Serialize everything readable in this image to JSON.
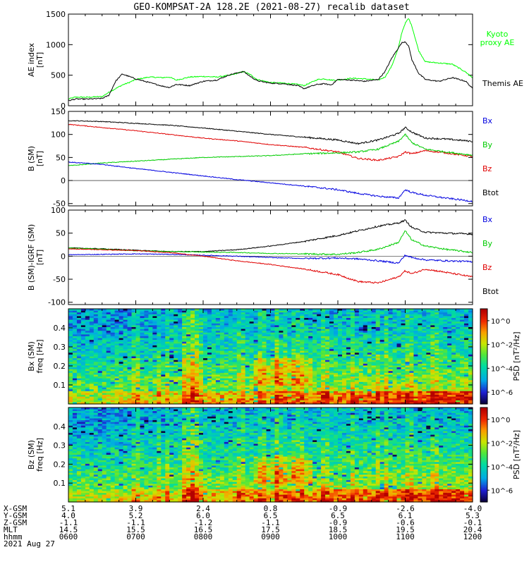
{
  "title": "GEO-KOMPSAT-2A 128.2E (2021-08-27) recalib dataset",
  "colors": {
    "black": "#000000",
    "blue": "#0000e0",
    "green": "#00cc00",
    "red": "#e00000",
    "ae_green": "#00ff00"
  },
  "chart_data": [
    {
      "type": "line",
      "panel": "AE index",
      "ylabel_main": "AE index",
      "ylabel_unit": "[nT]",
      "yticks": [
        "0",
        "500",
        "1000",
        "1500"
      ],
      "ylim": [
        0,
        1500
      ],
      "legend": [
        {
          "name": "Kyoto proxy AE",
          "lines": [
            "Kyoto",
            "proxy AE"
          ],
          "color": "#00ff00"
        },
        {
          "name": "Themis AE",
          "lines": [
            "Themis AE"
          ],
          "color": "#000000"
        }
      ],
      "series": [
        {
          "name": "Kyoto proxy AE",
          "color": "#00ff00",
          "x": [
            6.0,
            6.1,
            6.3,
            6.5,
            6.6,
            6.8,
            6.9,
            7.0,
            7.2,
            7.4,
            7.5,
            7.6,
            7.8,
            8.0,
            8.2,
            8.4,
            8.6,
            8.7,
            8.8,
            9.0,
            9.2,
            9.4,
            9.5,
            9.6,
            9.7,
            9.8,
            9.9,
            10.0,
            10.2,
            10.4,
            10.6,
            10.7,
            10.8,
            10.9,
            10.95,
            11.0,
            11.05,
            11.1,
            11.2,
            11.3,
            11.5,
            11.7,
            11.9,
            12.0
          ],
          "y": [
            110,
            140,
            140,
            150,
            220,
            340,
            380,
            430,
            470,
            460,
            470,
            420,
            470,
            480,
            470,
            500,
            560,
            510,
            430,
            380,
            370,
            350,
            330,
            380,
            430,
            440,
            420,
            420,
            450,
            440,
            420,
            470,
            650,
            950,
            1200,
            1350,
            1430,
            1300,
            900,
            720,
            700,
            680,
            550,
            460
          ]
        },
        {
          "name": "Themis AE",
          "color": "#000000",
          "x": [
            6.0,
            6.1,
            6.3,
            6.5,
            6.6,
            6.7,
            6.8,
            6.9,
            7.0,
            7.2,
            7.4,
            7.5,
            7.6,
            7.8,
            8.0,
            8.2,
            8.4,
            8.6,
            8.7,
            8.8,
            9.0,
            9.2,
            9.4,
            9.5,
            9.6,
            9.7,
            9.8,
            9.9,
            10.0,
            10.2,
            10.4,
            10.6,
            10.7,
            10.8,
            10.9,
            10.95,
            11.0,
            11.05,
            11.1,
            11.2,
            11.3,
            11.5,
            11.7,
            11.9,
            12.0
          ],
          "y": [
            80,
            110,
            110,
            120,
            170,
            400,
            520,
            480,
            440,
            380,
            320,
            300,
            350,
            330,
            400,
            420,
            510,
            560,
            480,
            410,
            370,
            360,
            330,
            280,
            320,
            350,
            360,
            340,
            430,
            420,
            400,
            430,
            560,
            780,
            950,
            1030,
            1050,
            980,
            750,
            530,
            430,
            400,
            460,
            400,
            280
          ]
        }
      ]
    },
    {
      "type": "line",
      "panel": "B (SM)",
      "ylabel_main": "B (SM)",
      "ylabel_unit": "[nT]",
      "yticks": [
        "-50",
        "0",
        "50",
        "100",
        "150"
      ],
      "ylim": [
        -55,
        150
      ],
      "legend": [
        {
          "name": "Bx",
          "lines": [
            "Bx"
          ],
          "color": "#0000e0"
        },
        {
          "name": "By",
          "lines": [
            "By"
          ],
          "color": "#00cc00"
        },
        {
          "name": "Bz",
          "lines": [
            "Bz"
          ],
          "color": "#e00000"
        },
        {
          "name": "Btot",
          "lines": [
            "Btot"
          ],
          "color": "#000000"
        }
      ],
      "series": [
        {
          "name": "Btot",
          "color": "#000000",
          "x": [
            6.0,
            6.5,
            7.0,
            7.5,
            8.0,
            8.5,
            9.0,
            9.5,
            10.0,
            10.3,
            10.6,
            10.9,
            11.0,
            11.1,
            11.3,
            11.6,
            12.0
          ],
          "y": [
            130,
            128,
            124,
            120,
            114,
            107,
            100,
            94,
            88,
            80,
            88,
            102,
            115,
            105,
            92,
            90,
            85
          ]
        },
        {
          "name": "Bz",
          "color": "#e00000",
          "x": [
            6.0,
            6.5,
            7.0,
            7.5,
            8.0,
            8.5,
            9.0,
            9.5,
            10.0,
            10.3,
            10.6,
            10.9,
            11.0,
            11.1,
            11.3,
            11.6,
            12.0
          ],
          "y": [
            122,
            115,
            108,
            100,
            92,
            86,
            78,
            72,
            62,
            48,
            44,
            52,
            62,
            58,
            65,
            60,
            52
          ]
        },
        {
          "name": "By",
          "color": "#00cc00",
          "x": [
            6.0,
            6.5,
            7.0,
            7.5,
            8.0,
            8.5,
            9.0,
            9.5,
            10.0,
            10.3,
            10.6,
            10.9,
            11.0,
            11.1,
            11.3,
            11.6,
            12.0
          ],
          "y": [
            32,
            38,
            42,
            46,
            50,
            52,
            54,
            58,
            60,
            62,
            68,
            85,
            100,
            82,
            68,
            62,
            55
          ]
        },
        {
          "name": "Bx",
          "color": "#0000e0",
          "x": [
            6.0,
            6.5,
            7.0,
            7.5,
            8.0,
            8.5,
            9.0,
            9.5,
            10.0,
            10.3,
            10.6,
            10.9,
            11.0,
            11.1,
            11.3,
            11.6,
            12.0
          ],
          "y": [
            40,
            35,
            26,
            18,
            10,
            2,
            -5,
            -12,
            -20,
            -28,
            -34,
            -38,
            -20,
            -26,
            -32,
            -38,
            -45
          ]
        }
      ]
    },
    {
      "type": "line",
      "panel": "B (SM)-IGRF (SM)",
      "ylabel_main": "B (SM)-IGRF (SM)",
      "ylabel_unit": "[nT]",
      "yticks": [
        "-100",
        "-50",
        "0",
        "50",
        "100"
      ],
      "ylim": [
        -105,
        100
      ],
      "legend": [
        {
          "name": "Bx",
          "lines": [
            "Bx"
          ],
          "color": "#0000e0"
        },
        {
          "name": "By",
          "lines": [
            "By"
          ],
          "color": "#00cc00"
        },
        {
          "name": "Bz",
          "lines": [
            "Bz"
          ],
          "color": "#e00000"
        },
        {
          "name": "Btot",
          "lines": [
            "Btot"
          ],
          "color": "#000000"
        }
      ],
      "series": [
        {
          "name": "Btot",
          "color": "#000000",
          "x": [
            6.0,
            6.5,
            7.0,
            7.5,
            8.0,
            8.5,
            9.0,
            9.5,
            10.0,
            10.3,
            10.6,
            10.9,
            11.0,
            11.1,
            11.3,
            11.6,
            12.0
          ],
          "y": [
            18,
            16,
            13,
            10,
            10,
            14,
            22,
            32,
            45,
            55,
            65,
            72,
            78,
            62,
            52,
            50,
            48
          ]
        },
        {
          "name": "By",
          "color": "#00cc00",
          "x": [
            6.0,
            6.5,
            7.0,
            7.5,
            8.0,
            8.5,
            9.0,
            9.5,
            10.0,
            10.3,
            10.6,
            10.9,
            11.0,
            11.1,
            11.3,
            11.6,
            12.0
          ],
          "y": [
            18,
            15,
            12,
            10,
            9,
            8,
            6,
            5,
            4,
            8,
            15,
            30,
            55,
            35,
            22,
            15,
            8
          ]
        },
        {
          "name": "Bx",
          "color": "#0000e0",
          "x": [
            6.0,
            6.5,
            7.0,
            7.5,
            8.0,
            8.5,
            9.0,
            9.5,
            10.0,
            10.3,
            10.6,
            10.9,
            11.0,
            11.1,
            11.3,
            11.6,
            12.0
          ],
          "y": [
            3,
            4,
            5,
            4,
            2,
            0,
            -3,
            -5,
            -4,
            -6,
            -10,
            -15,
            2,
            -3,
            -8,
            -10,
            -12
          ]
        },
        {
          "name": "Bz",
          "color": "#e00000",
          "x": [
            6.0,
            6.5,
            7.0,
            7.5,
            8.0,
            8.5,
            9.0,
            9.5,
            10.0,
            10.3,
            10.6,
            10.9,
            11.0,
            11.1,
            11.3,
            11.6,
            12.0
          ],
          "y": [
            16,
            14,
            12,
            8,
            0,
            -10,
            -18,
            -28,
            -40,
            -55,
            -58,
            -45,
            -32,
            -38,
            -28,
            -35,
            -45
          ]
        }
      ]
    },
    {
      "type": "heatmap",
      "panel": "Bx (SM) spectrogram",
      "ylabel_main": "Bx (SM)",
      "ylabel_unit": "freq [Hz]",
      "yticks": [
        "0.1",
        "0.2",
        "0.3",
        "0.4"
      ],
      "ylim": [
        0,
        0.5
      ],
      "colorbar": {
        "label": "PSD [nT²/Hz]",
        "ticks": [
          "10^0",
          "10^-2",
          "10^-4",
          "10^-6"
        ],
        "range_log10": [
          -7,
          1
        ]
      }
    },
    {
      "type": "heatmap",
      "panel": "Bz (SM) spectrogram",
      "ylabel_main": "Bz (SM)",
      "ylabel_unit": "freq [Hz]",
      "yticks": [
        "0.1",
        "0.2",
        "0.3",
        "0.4"
      ],
      "ylim": [
        0,
        0.5
      ],
      "colorbar": {
        "label": "PSD [nT²/Hz]",
        "ticks": [
          "10^0",
          "10^-2",
          "10^-4",
          "10^-6"
        ],
        "range_log10": [
          -7,
          1
        ]
      }
    }
  ],
  "ephemeris": {
    "labels": [
      "X-GSM",
      "Y-GSM",
      "Z-GSM",
      "MLT",
      "hhmm",
      "2021 Aug 27"
    ],
    "rows": [
      [
        "5.1",
        "3.9",
        "2.4",
        "0.8",
        "-0.9",
        "-2.6",
        "-4.0"
      ],
      [
        "4.0",
        "5.2",
        "6.0",
        "6.5",
        "6.5",
        "6.1",
        "5.3"
      ],
      [
        "-1.1",
        "-1.1",
        "-1.2",
        "-1.1",
        "-0.9",
        "-0.6",
        "-0.1"
      ],
      [
        "14.5",
        "15.5",
        "16.5",
        "17.5",
        "18.5",
        "19.5",
        "20.4"
      ],
      [
        "0600",
        "0700",
        "0800",
        "0900",
        "1000",
        "1100",
        "1200"
      ]
    ]
  }
}
